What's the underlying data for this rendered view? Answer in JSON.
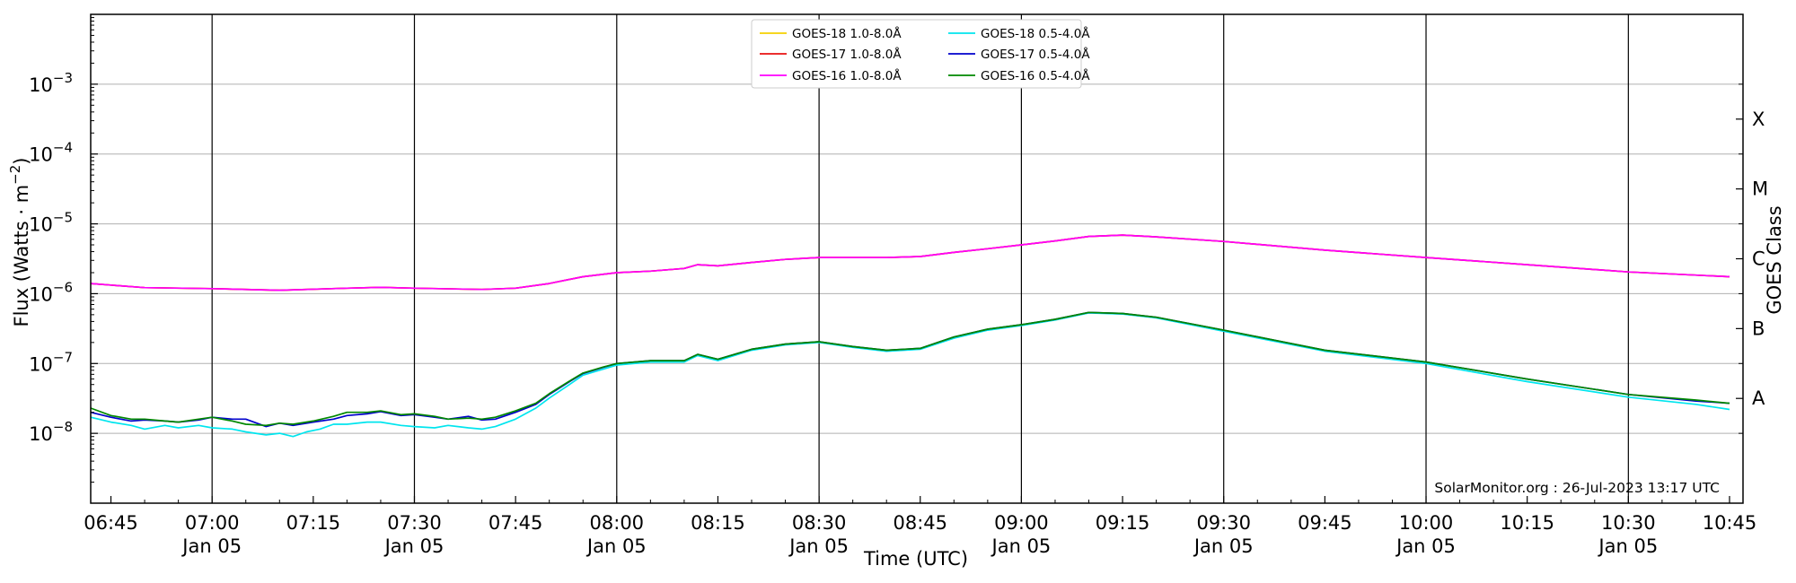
{
  "chart_data": {
    "type": "line",
    "xlabel": "Time (UTC)",
    "ylabel": "Flux (Watts · m^-2)",
    "ylabel_parts": {
      "main": "Flux (Watts · m",
      "sup": "−2",
      "end": ")"
    },
    "right_label": "GOES Class",
    "watermark": "SolarMonitor.org : 26-Jul-2023 13:17 UTC",
    "yscale": "log",
    "ylim": [
      1e-09,
      0.01
    ],
    "xlim": [
      "06:42",
      "10:47"
    ],
    "grid": "y",
    "legend": "top-center",
    "x_ticks": [
      {
        "t": "06:45",
        "label": "06:45",
        "sub": ""
      },
      {
        "t": "07:00",
        "label": "07:00",
        "sub": "Jan 05"
      },
      {
        "t": "07:15",
        "label": "07:15",
        "sub": ""
      },
      {
        "t": "07:30",
        "label": "07:30",
        "sub": "Jan 05"
      },
      {
        "t": "07:45",
        "label": "07:45",
        "sub": ""
      },
      {
        "t": "08:00",
        "label": "08:00",
        "sub": "Jan 05"
      },
      {
        "t": "08:15",
        "label": "08:15",
        "sub": ""
      },
      {
        "t": "08:30",
        "label": "08:30",
        "sub": "Jan 05"
      },
      {
        "t": "08:45",
        "label": "08:45",
        "sub": ""
      },
      {
        "t": "09:00",
        "label": "09:00",
        "sub": "Jan 05"
      },
      {
        "t": "09:15",
        "label": "09:15",
        "sub": ""
      },
      {
        "t": "09:30",
        "label": "09:30",
        "sub": "Jan 05"
      },
      {
        "t": "09:45",
        "label": "09:45",
        "sub": ""
      },
      {
        "t": "10:00",
        "label": "10:00",
        "sub": "Jan 05"
      },
      {
        "t": "10:15",
        "label": "10:15",
        "sub": ""
      },
      {
        "t": "10:30",
        "label": "10:30",
        "sub": "Jan 05"
      },
      {
        "t": "10:45",
        "label": "10:45",
        "sub": ""
      }
    ],
    "vlines": [
      "07:00",
      "07:30",
      "08:00",
      "08:30",
      "09:00",
      "09:30",
      "10:00",
      "10:30"
    ],
    "y_ticks": [
      {
        "exp": -8,
        "label": "10",
        "sup": "−8"
      },
      {
        "exp": -7,
        "label": "10",
        "sup": "−7"
      },
      {
        "exp": -6,
        "label": "10",
        "sup": "−6"
      },
      {
        "exp": -5,
        "label": "10",
        "sup": "−5"
      },
      {
        "exp": -4,
        "label": "10",
        "sup": "−4"
      },
      {
        "exp": -3,
        "label": "10",
        "sup": "−3"
      }
    ],
    "goes_classes": [
      {
        "label": "A",
        "exp": -7.5
      },
      {
        "label": "B",
        "exp": -6.5
      },
      {
        "label": "C",
        "exp": -5.5
      },
      {
        "label": "M",
        "exp": -4.5
      },
      {
        "label": "X",
        "exp": -3.5
      }
    ],
    "series": [
      {
        "name": "GOES-18 1.0-8.0Å",
        "color": "#f5d000",
        "x": [
          "06:42",
          "06:50",
          "07:00",
          "07:10",
          "07:20",
          "07:25",
          "07:30",
          "07:40",
          "07:45",
          "07:50",
          "07:55",
          "08:00",
          "08:05",
          "08:10",
          "08:12",
          "08:15",
          "08:20",
          "08:25",
          "08:30",
          "08:40",
          "08:45",
          "08:50",
          "08:55",
          "09:00",
          "09:05",
          "09:10",
          "09:15",
          "09:20",
          "09:30",
          "09:45",
          "10:00",
          "10:15",
          "10:30",
          "10:45"
        ],
        "y": [
          1.4e-06,
          1.22e-06,
          1.18e-06,
          1.12e-06,
          1.2e-06,
          1.23e-06,
          1.2e-06,
          1.15e-06,
          1.2e-06,
          1.4e-06,
          1.75e-06,
          2e-06,
          2.1e-06,
          2.3e-06,
          2.6e-06,
          2.5e-06,
          2.8e-06,
          3.1e-06,
          3.3e-06,
          3.3e-06,
          3.4e-06,
          3.9e-06,
          4.4e-06,
          5e-06,
          5.7e-06,
          6.6e-06,
          6.9e-06,
          6.5e-06,
          5.6e-06,
          4.2e-06,
          3.3e-06,
          2.6e-06,
          2.05e-06,
          1.75e-06
        ]
      },
      {
        "name": "GOES-17 1.0-8.0Å",
        "color": "#e81010",
        "x": [
          "06:42",
          "06:50",
          "07:00",
          "07:10",
          "07:20",
          "07:25",
          "07:30",
          "07:40",
          "07:45",
          "07:50",
          "07:55",
          "08:00",
          "08:05",
          "08:10",
          "08:12",
          "08:15",
          "08:20",
          "08:25",
          "08:30",
          "08:40",
          "08:45",
          "08:50",
          "08:55",
          "09:00",
          "09:05",
          "09:10",
          "09:15",
          "09:20",
          "09:30",
          "09:45",
          "10:00",
          "10:15",
          "10:30",
          "10:45"
        ],
        "y": [
          1.4e-06,
          1.22e-06,
          1.18e-06,
          1.12e-06,
          1.2e-06,
          1.23e-06,
          1.2e-06,
          1.15e-06,
          1.2e-06,
          1.4e-06,
          1.75e-06,
          2e-06,
          2.1e-06,
          2.3e-06,
          2.6e-06,
          2.5e-06,
          2.8e-06,
          3.1e-06,
          3.3e-06,
          3.3e-06,
          3.4e-06,
          3.9e-06,
          4.4e-06,
          5e-06,
          5.7e-06,
          6.6e-06,
          6.9e-06,
          6.5e-06,
          5.6e-06,
          4.2e-06,
          3.3e-06,
          2.6e-06,
          2.05e-06,
          1.75e-06
        ]
      },
      {
        "name": "GOES-16 1.0-8.0Å",
        "color": "#ff00ff",
        "x": [
          "06:42",
          "06:50",
          "07:00",
          "07:10",
          "07:20",
          "07:25",
          "07:30",
          "07:40",
          "07:45",
          "07:50",
          "07:55",
          "08:00",
          "08:05",
          "08:10",
          "08:12",
          "08:15",
          "08:20",
          "08:25",
          "08:30",
          "08:40",
          "08:45",
          "08:50",
          "08:55",
          "09:00",
          "09:05",
          "09:10",
          "09:15",
          "09:20",
          "09:30",
          "09:45",
          "10:00",
          "10:15",
          "10:30",
          "10:45"
        ],
        "y": [
          1.4e-06,
          1.22e-06,
          1.18e-06,
          1.12e-06,
          1.2e-06,
          1.23e-06,
          1.2e-06,
          1.15e-06,
          1.2e-06,
          1.4e-06,
          1.75e-06,
          2e-06,
          2.1e-06,
          2.3e-06,
          2.6e-06,
          2.5e-06,
          2.8e-06,
          3.1e-06,
          3.3e-06,
          3.3e-06,
          3.4e-06,
          3.9e-06,
          4.4e-06,
          5e-06,
          5.7e-06,
          6.6e-06,
          6.9e-06,
          6.5e-06,
          5.6e-06,
          4.2e-06,
          3.3e-06,
          2.6e-06,
          2.05e-06,
          1.75e-06
        ]
      },
      {
        "name": "GOES-18 0.5-4.0Å",
        "color": "#00e5ee",
        "x": [
          "06:42",
          "06:45",
          "06:48",
          "06:50",
          "06:53",
          "06:55",
          "06:58",
          "07:00",
          "07:03",
          "07:05",
          "07:08",
          "07:10",
          "07:12",
          "07:14",
          "07:16",
          "07:18",
          "07:20",
          "07:23",
          "07:25",
          "07:28",
          "07:30",
          "07:33",
          "07:35",
          "07:38",
          "07:40",
          "07:42",
          "07:45",
          "07:48",
          "07:50",
          "07:53",
          "07:55",
          "07:58",
          "08:00",
          "08:05",
          "08:10",
          "08:12",
          "08:15",
          "08:20",
          "08:25",
          "08:30",
          "08:35",
          "08:40",
          "08:45",
          "08:50",
          "08:55",
          "09:00",
          "09:05",
          "09:10",
          "09:15",
          "09:20",
          "09:30",
          "09:45",
          "10:00",
          "10:15",
          "10:30",
          "10:40",
          "10:45"
        ],
        "y": [
          1.7e-08,
          1.45e-08,
          1.3e-08,
          1.15e-08,
          1.3e-08,
          1.2e-08,
          1.3e-08,
          1.2e-08,
          1.15e-08,
          1.05e-08,
          9.5e-09,
          1e-08,
          9e-09,
          1.05e-08,
          1.15e-08,
          1.35e-08,
          1.35e-08,
          1.45e-08,
          1.45e-08,
          1.3e-08,
          1.25e-08,
          1.2e-08,
          1.3e-08,
          1.2e-08,
          1.15e-08,
          1.25e-08,
          1.6e-08,
          2.3e-08,
          3.2e-08,
          5e-08,
          6.8e-08,
          8.3e-08,
          9.5e-08,
          1.05e-07,
          1.05e-07,
          1.3e-07,
          1.1e-07,
          1.55e-07,
          1.85e-07,
          2e-07,
          1.7e-07,
          1.5e-07,
          1.6e-07,
          2.3e-07,
          3e-07,
          3.5e-07,
          4.2e-07,
          5.3e-07,
          5.1e-07,
          4.5e-07,
          2.9e-07,
          1.5e-07,
          1e-07,
          5.5e-08,
          3.3e-08,
          2.6e-08,
          2.2e-08
        ]
      },
      {
        "name": "GOES-17 0.5-4.0Å",
        "color": "#0000cc",
        "x": [
          "06:42",
          "06:45",
          "06:48",
          "06:50",
          "06:53",
          "06:55",
          "06:58",
          "07:00",
          "07:03",
          "07:05",
          "07:08",
          "07:10",
          "07:12",
          "07:15",
          "07:18",
          "07:20",
          "07:23",
          "07:25",
          "07:28",
          "07:30",
          "07:33",
          "07:35",
          "07:38",
          "07:40",
          "07:42",
          "07:45",
          "07:48",
          "07:50",
          "07:53",
          "07:55",
          "07:58",
          "08:00",
          "08:05",
          "08:10",
          "08:12",
          "08:15",
          "08:20",
          "08:25",
          "08:30",
          "08:35",
          "08:40",
          "08:45",
          "08:50",
          "08:55",
          "09:00",
          "09:05",
          "09:10",
          "09:15",
          "09:20",
          "09:30",
          "09:45",
          "10:00",
          "10:15",
          "10:30",
          "10:40",
          "10:45"
        ],
        "y": [
          2e-08,
          1.7e-08,
          1.5e-08,
          1.55e-08,
          1.5e-08,
          1.45e-08,
          1.55e-08,
          1.7e-08,
          1.6e-08,
          1.6e-08,
          1.25e-08,
          1.4e-08,
          1.3e-08,
          1.45e-08,
          1.6e-08,
          1.8e-08,
          1.9e-08,
          2.05e-08,
          1.8e-08,
          1.85e-08,
          1.7e-08,
          1.6e-08,
          1.75e-08,
          1.55e-08,
          1.6e-08,
          2e-08,
          2.6e-08,
          3.6e-08,
          5.5e-08,
          7.2e-08,
          8.8e-08,
          1e-07,
          1.1e-07,
          1.1e-07,
          1.35e-07,
          1.15e-07,
          1.6e-07,
          1.9e-07,
          2.05e-07,
          1.75e-07,
          1.55e-07,
          1.65e-07,
          2.4e-07,
          3.1e-07,
          3.6e-07,
          4.3e-07,
          5.4e-07,
          5.2e-07,
          4.6e-07,
          3e-07,
          1.55e-07,
          1.05e-07,
          6e-08,
          3.6e-08,
          2.9e-08,
          2.7e-08
        ]
      },
      {
        "name": "GOES-16 0.5-4.0Å",
        "color": "#008800",
        "x": [
          "06:42",
          "06:45",
          "06:48",
          "06:50",
          "06:53",
          "06:55",
          "06:58",
          "07:00",
          "07:03",
          "07:05",
          "07:08",
          "07:10",
          "07:12",
          "07:15",
          "07:18",
          "07:20",
          "07:23",
          "07:25",
          "07:28",
          "07:30",
          "07:33",
          "07:35",
          "07:38",
          "07:40",
          "07:42",
          "07:45",
          "07:48",
          "07:50",
          "07:53",
          "07:55",
          "07:58",
          "08:00",
          "08:05",
          "08:10",
          "08:12",
          "08:15",
          "08:20",
          "08:25",
          "08:30",
          "08:35",
          "08:40",
          "08:45",
          "08:50",
          "08:55",
          "09:00",
          "09:05",
          "09:10",
          "09:15",
          "09:20",
          "09:30",
          "09:45",
          "10:00",
          "10:15",
          "10:30",
          "10:40",
          "10:45"
        ],
        "y": [
          2.3e-08,
          1.8e-08,
          1.6e-08,
          1.6e-08,
          1.5e-08,
          1.45e-08,
          1.6e-08,
          1.7e-08,
          1.5e-08,
          1.35e-08,
          1.3e-08,
          1.4e-08,
          1.35e-08,
          1.5e-08,
          1.75e-08,
          2e-08,
          2e-08,
          2.1e-08,
          1.85e-08,
          1.9e-08,
          1.75e-08,
          1.6e-08,
          1.65e-08,
          1.6e-08,
          1.7e-08,
          2.1e-08,
          2.7e-08,
          3.7e-08,
          5.6e-08,
          7.3e-08,
          8.9e-08,
          1e-07,
          1.1e-07,
          1.1e-07,
          1.35e-07,
          1.15e-07,
          1.6e-07,
          1.9e-07,
          2.05e-07,
          1.75e-07,
          1.55e-07,
          1.65e-07,
          2.4e-07,
          3.1e-07,
          3.6e-07,
          4.3e-07,
          5.4e-07,
          5.2e-07,
          4.6e-07,
          3e-07,
          1.55e-07,
          1.05e-07,
          6e-08,
          3.6e-08,
          3e-08,
          2.7e-08
        ]
      }
    ]
  }
}
